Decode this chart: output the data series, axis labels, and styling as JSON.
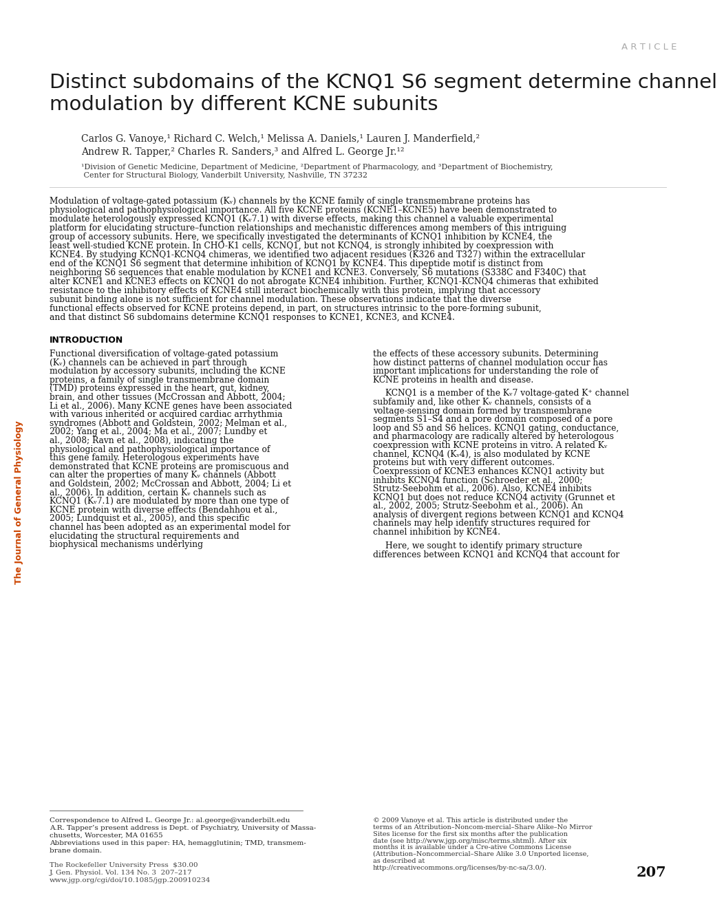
{
  "article_label": "A R T I C L E",
  "title_line1": "Distinct subdomains of the KCNQ1 S6 segment determine channel",
  "title_line2": "modulation by different KCNE subunits",
  "authors_line1": "Carlos G. Vanoye,¹ Richard C. Welch,¹ Melissa A. Daniels,¹ Lauren J. Manderfield,²",
  "authors_line2": "Andrew R. Tapper,² Charles R. Sanders,³ and Alfred L. George Jr.¹²",
  "affil_line1": "¹Division of Genetic Medicine, Department of Medicine, ²Department of Pharmacology, and ³Department of Biochemistry,",
  "affil_line2": " Center for Structural Biology, Vanderbilt University, Nashville, TN 37232",
  "abstract_text": "Modulation of voltage-gated potassium (Kᵥ) channels by the KCNE family of single transmembrane proteins has physiological and pathophysiological importance. All five KCNE proteins (KCNE1–KCNE5) have been demonstrated to modulate heterologously expressed KCNQ1 (Kᵥ7.1) with diverse effects, making this channel a valuable experimental platform for elucidating structure–function relationships and mechanistic differences among members of this intriguing group of accessory subunits. Here, we specifically investigated the determinants of KCNQ1 inhibition by KCNE4, the least well-studied KCNE protein. In CHO-K1 cells, KCNQ1, but not KCNQ4, is strongly inhibited by coexpression with KCNE4. By studying KCNQ1-KCNQ4 chimeras, we identified two adjacent residues (K326 and T327) within the extracellular end of the KCNQ1 S6 segment that determine inhibition of KCNQ1 by KCNE4. This dipeptide motif is distinct from neighboring S6 sequences that enable modulation by KCNE1 and KCNE3. Conversely, S6 mutations (S338C and F340C) that alter KCNE1 and KCNE3 effects on KCNQ1 do not abrogate KCNE4 inhibition. Further, KCNQ1-KCNQ4 chimeras that exhibited resistance to the inhibitory effects of KCNE4 still interact biochemically with this protein, implying that accessory subunit binding alone is not sufficient for channel modulation. These observations indicate that the diverse functional effects observed for KCNE proteins depend, in part, on structures intrinsic to the pore-forming subunit, and that distinct S6 subdomains determine KCNQ1 responses to KCNE1, KCNE3, and KCNE4.",
  "intro_heading": "INTRODUCTION",
  "intro_col1": "Functional diversification of voltage-gated potassium (Kᵥ) channels can be achieved in part through modulation by accessory subunits, including the KCNE proteins, a family of single transmembrane domain (TMD) proteins expressed in the heart, gut, kidney, brain, and other tissues (McCrossan and Abbott, 2004; Li et al., 2006). Many KCNE genes have been associated with various inherited or acquired cardiac arrhythmia syndromes (Abbott and Goldstein, 2002; Melman et al., 2002; Yang et al., 2004; Ma et al., 2007; Lundby et al., 2008; Ravn et al., 2008), indicating the physiological and pathophysiological importance of this gene family. Heterologous experiments have demonstrated that KCNE proteins are promiscuous and can alter the properties of many Kᵥ channels (Abbott and Goldstein, 2002; McCrossan and Abbott, 2004; Li et al., 2006). In addition, certain Kᵥ channels such as KCNQ1 (Kᵥ7.1) are modulated by more than one type of KCNE protein with diverse effects (Bendahhou et al., 2005; Lundquist et al., 2005), and this specific channel has been adopted as an experimental model for elucidating the structural requirements and biophysical mechanisms underlying",
  "intro_col2_para1": "the effects of these accessory subunits. Determining how distinct patterns of channel modulation occur has important implications for understanding the role of KCNE proteins in health and disease.",
  "intro_col2_para2": "KCNQ1 is a member of the Kᵥ7 voltage-gated K⁺ channel subfamily and, like other Kᵥ channels, consists of a voltage-sensing domain formed by transmembrane segments S1–S4 and a pore domain composed of a pore loop and S5 and S6 helices. KCNQ1 gating, conductance, and pharmacology are radically altered by heterologous coexpression with KCNE proteins in vitro. A related Kᵥ channel, KCNQ4 (Kᵥ4), is also modulated by KCNE proteins but with very different outcomes. Coexpression of KCNE3 enhances KCNQ1 activity but inhibits KCNQ4 function (Schroeder et al., 2000; Strutz-Seebohm et al., 2006). Also, KCNE4 inhibits KCNQ1 but does not reduce KCNQ4 activity (Grunnet et al., 2002, 2005; Strutz-Seebohm et al., 2006). An analysis of divergent regions between KCNQ1 and KCNQ4 channels may help identify structures required for channel inhibition by KCNE4.",
  "intro_col2_para3": "Here, we sought to identify primary structure differences between KCNQ1 and KCNQ4 that account for",
  "correspondence": "Correspondence to Alfred L. George Jr.: al.george@vanderbilt.edu",
  "tapper_note": "A.R. Tapper’s present address is Dept. of Psychiatry, University of Massa-",
  "tapper_note2": "chusetts, Worcester, MA 01655",
  "abbreviations": "Abbreviations used in this paper: HA, hemagglutinin; TMD, transmem-",
  "abbreviations2": "brane domain.",
  "publisher_line1": "The Rockefeller University Press  $30.00",
  "publisher_line2": "J. Gen. Physiol. Vol. 134 No. 3  207–217",
  "publisher_line3": "www.jgp.org/cgi/doi/10.1085/jgp.200910234",
  "page_number": "207",
  "copyright_text": "© 2009 Vanoye et al.  This article is distributed under the terms of an Attribution–Noncom-mercial–Share Alike–No Mirror Sites license for the first six months after the publication date (see http://www.jgp.org/misc/terms.shtml). After six months it is available under a Cre-ative Commons License (Attribution–Noncommercial–Share Alike 3.0 Unported license, as described at http://creativecommons.org/licenses/by-nc-sa/3.0/).",
  "side_label": "The Journal of General Physiology",
  "bg_color": "#ffffff",
  "text_color": "#111111",
  "article_label_color": "#aaaaaa",
  "title_color": "#1a1a1a",
  "side_label_color": "#cc4400"
}
